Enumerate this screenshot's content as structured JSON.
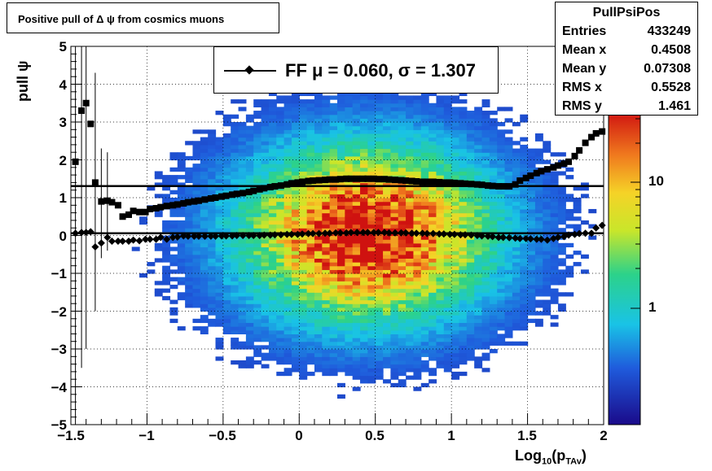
{
  "title": "Positive pull of Δ ψ from cosmics muons",
  "stats": {
    "name": "PullPsiPos",
    "rows": [
      {
        "k": "Entries",
        "v": "433249"
      },
      {
        "k": "Mean x",
        "v": "0.4508"
      },
      {
        "k": "Mean y",
        "v": "0.07308"
      },
      {
        "k": "RMS x",
        "v": "0.5528"
      },
      {
        "k": "RMS y",
        "v": "1.461"
      }
    ]
  },
  "legend": {
    "fit_label": "FF μ =  0.060, σ =   1.307"
  },
  "axes": {
    "xlabel_main": "Log",
    "xlabel_sub1": "10",
    "xlabel_paren": "(p",
    "xlabel_sub2": "TAv",
    "xlabel_close": ")",
    "ylabel": "pull ψ",
    "xticks": [
      "−1.5",
      "−1",
      "−0.5",
      "0",
      "0.5",
      "1",
      "1.5",
      "2"
    ],
    "yticks": [
      "5",
      "4",
      "3",
      "2",
      "1",
      "0",
      "−1",
      "−2",
      "−3",
      "−4",
      "−5"
    ],
    "zticks": [
      "10",
      "1"
    ]
  },
  "chart_data": {
    "type": "heatmap",
    "xlim": [
      -1.5,
      2
    ],
    "ylim": [
      -5,
      5
    ],
    "z_log": true,
    "grid": true,
    "colors": {
      "high": "#d01010",
      "mid": "#f0e020",
      "low": "#2070e0",
      "sigma_markers": "#000000"
    },
    "mean_series": {
      "name": "mean",
      "x": [
        -1.47,
        -1.43,
        -1.4,
        -1.37,
        -1.34,
        -1.3,
        -1.26,
        -1.23,
        -1.19,
        -1.16,
        -1.12,
        -1.09,
        -1.05,
        -1.01,
        -0.98,
        -0.94,
        -0.91,
        -0.87,
        -0.83,
        -0.8,
        -0.76,
        -0.73,
        -0.69,
        -0.66,
        -0.62,
        -0.58,
        -0.55,
        -0.51,
        -0.48,
        -0.44,
        -0.41,
        -0.37,
        -0.33,
        -0.3,
        -0.26,
        -0.23,
        -0.19,
        -0.16,
        -0.12,
        -0.08,
        -0.05,
        -0.01,
        0.02,
        0.06,
        0.09,
        0.13,
        0.17,
        0.2,
        0.24,
        0.27,
        0.31,
        0.34,
        0.38,
        0.42,
        0.45,
        0.49,
        0.52,
        0.56,
        0.59,
        0.63,
        0.67,
        0.7,
        0.74,
        0.77,
        0.81,
        0.84,
        0.88,
        0.92,
        0.95,
        0.99,
        1.02,
        1.06,
        1.09,
        1.13,
        1.17,
        1.2,
        1.24,
        1.27,
        1.31,
        1.34,
        1.38,
        1.42,
        1.45,
        1.49,
        1.52,
        1.56,
        1.59,
        1.63,
        1.67,
        1.7,
        1.74,
        1.77,
        1.81,
        1.84,
        1.88,
        1.92,
        1.95,
        1.99
      ],
      "y": [
        0.06,
        0.08,
        0.08,
        0.1,
        -0.3,
        -0.2,
        -0.05,
        -0.15,
        -0.15,
        -0.15,
        -0.15,
        -0.12,
        -0.14,
        -0.1,
        -0.1,
        -0.1,
        -0.05,
        -0.1,
        -0.05,
        -0.04,
        -0.01,
        -0.02,
        -0.02,
        -0.02,
        -0.02,
        -0.02,
        -0.02,
        -0.01,
        -0.01,
        -0.01,
        0.0,
        0.0,
        0.0,
        0.0,
        0.0,
        0.01,
        0.01,
        0.02,
        0.02,
        0.03,
        0.03,
        0.03,
        0.04,
        0.05,
        0.05,
        0.05,
        0.06,
        0.06,
        0.07,
        0.07,
        0.07,
        0.08,
        0.08,
        0.08,
        0.08,
        0.08,
        0.08,
        0.08,
        0.07,
        0.07,
        0.07,
        0.07,
        0.06,
        0.06,
        0.06,
        0.05,
        0.05,
        0.04,
        0.04,
        0.03,
        0.03,
        0.02,
        0.02,
        0.01,
        0.0,
        -0.01,
        -0.02,
        -0.03,
        -0.05,
        -0.05,
        -0.06,
        -0.07,
        -0.08,
        -0.08,
        -0.09,
        -0.1,
        -0.1,
        -0.12,
        -0.08,
        -0.05,
        -0.03,
        0.01,
        0.03,
        0.05,
        0.06,
        0.06,
        0.2,
        0.27
      ]
    },
    "rms_series": {
      "name": "rms",
      "x": [
        -1.47,
        -1.43,
        -1.4,
        -1.37,
        -1.34,
        -1.3,
        -1.26,
        -1.23,
        -1.19,
        -1.16,
        -1.12,
        -1.09,
        -1.05,
        -1.01,
        -0.98,
        -0.94,
        -0.91,
        -0.87,
        -0.83,
        -0.8,
        -0.76,
        -0.73,
        -0.69,
        -0.66,
        -0.62,
        -0.58,
        -0.55,
        -0.51,
        -0.48,
        -0.44,
        -0.41,
        -0.37,
        -0.33,
        -0.3,
        -0.26,
        -0.23,
        -0.19,
        -0.16,
        -0.12,
        -0.08,
        -0.05,
        -0.01,
        0.02,
        0.06,
        0.09,
        0.13,
        0.17,
        0.2,
        0.24,
        0.27,
        0.31,
        0.34,
        0.38,
        0.42,
        0.45,
        0.49,
        0.52,
        0.56,
        0.59,
        0.63,
        0.67,
        0.7,
        0.74,
        0.77,
        0.81,
        0.84,
        0.88,
        0.92,
        0.95,
        0.99,
        1.02,
        1.06,
        1.09,
        1.13,
        1.17,
        1.2,
        1.24,
        1.27,
        1.31,
        1.34,
        1.38,
        1.42,
        1.45,
        1.49,
        1.52,
        1.56,
        1.59,
        1.63,
        1.67,
        1.7,
        1.74,
        1.77,
        1.81,
        1.84,
        1.88,
        1.92,
        1.95,
        1.99
      ],
      "y": [
        1.95,
        3.3,
        3.5,
        2.95,
        1.4,
        0.9,
        0.92,
        0.88,
        0.8,
        0.5,
        0.55,
        0.65,
        0.62,
        0.62,
        0.7,
        0.72,
        0.75,
        0.78,
        0.8,
        0.82,
        0.85,
        0.88,
        0.9,
        0.92,
        0.95,
        0.98,
        1.0,
        1.03,
        1.05,
        1.08,
        1.1,
        1.12,
        1.15,
        1.18,
        1.22,
        1.25,
        1.28,
        1.3,
        1.32,
        1.35,
        1.38,
        1.4,
        1.42,
        1.44,
        1.45,
        1.46,
        1.47,
        1.48,
        1.48,
        1.49,
        1.5,
        1.5,
        1.5,
        1.5,
        1.5,
        1.5,
        1.49,
        1.49,
        1.48,
        1.47,
        1.46,
        1.45,
        1.44,
        1.43,
        1.42,
        1.42,
        1.42,
        1.41,
        1.4,
        1.4,
        1.39,
        1.38,
        1.37,
        1.36,
        1.35,
        1.34,
        1.32,
        1.31,
        1.3,
        1.3,
        1.3,
        1.35,
        1.45,
        1.52,
        1.58,
        1.65,
        1.7,
        1.75,
        1.8,
        1.85,
        1.9,
        1.95,
        2.1,
        2.25,
        2.45,
        2.6,
        2.7,
        2.75
      ]
    },
    "fit_lines": [
      {
        "name": "mu",
        "y": 0.06
      },
      {
        "name": "sigma",
        "y": 1.307
      }
    ],
    "xlabel": "Log10(pTAv)",
    "ylabel": "pull ψ"
  }
}
